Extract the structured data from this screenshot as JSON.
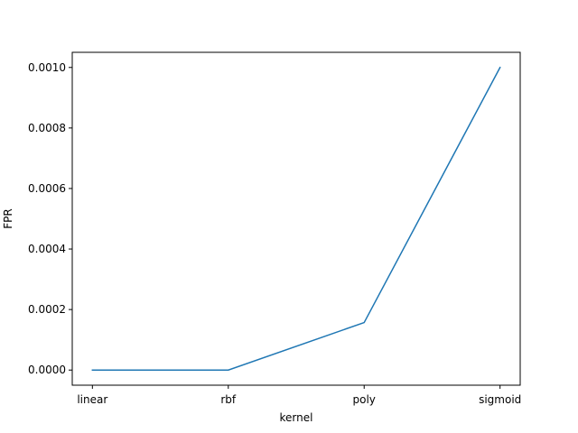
{
  "chart_data": {
    "type": "line",
    "title": "",
    "xlabel": "kernel",
    "ylabel": "FPR",
    "categories": [
      "linear",
      "rbf",
      "poly",
      "sigmoid"
    ],
    "series": [
      {
        "values": [
          0.0,
          0.0,
          0.000157,
          0.001
        ],
        "color": "#1f77b4"
      }
    ],
    "ylim": [
      -5e-05,
      0.00105
    ],
    "yticks": [
      0.0,
      0.0002,
      0.0004,
      0.0006,
      0.0008,
      0.001
    ],
    "ytick_labels": [
      "0.0000",
      "0.0002",
      "0.0004",
      "0.0006",
      "0.0008",
      "0.0010"
    ],
    "grid": false,
    "legend": "none"
  }
}
